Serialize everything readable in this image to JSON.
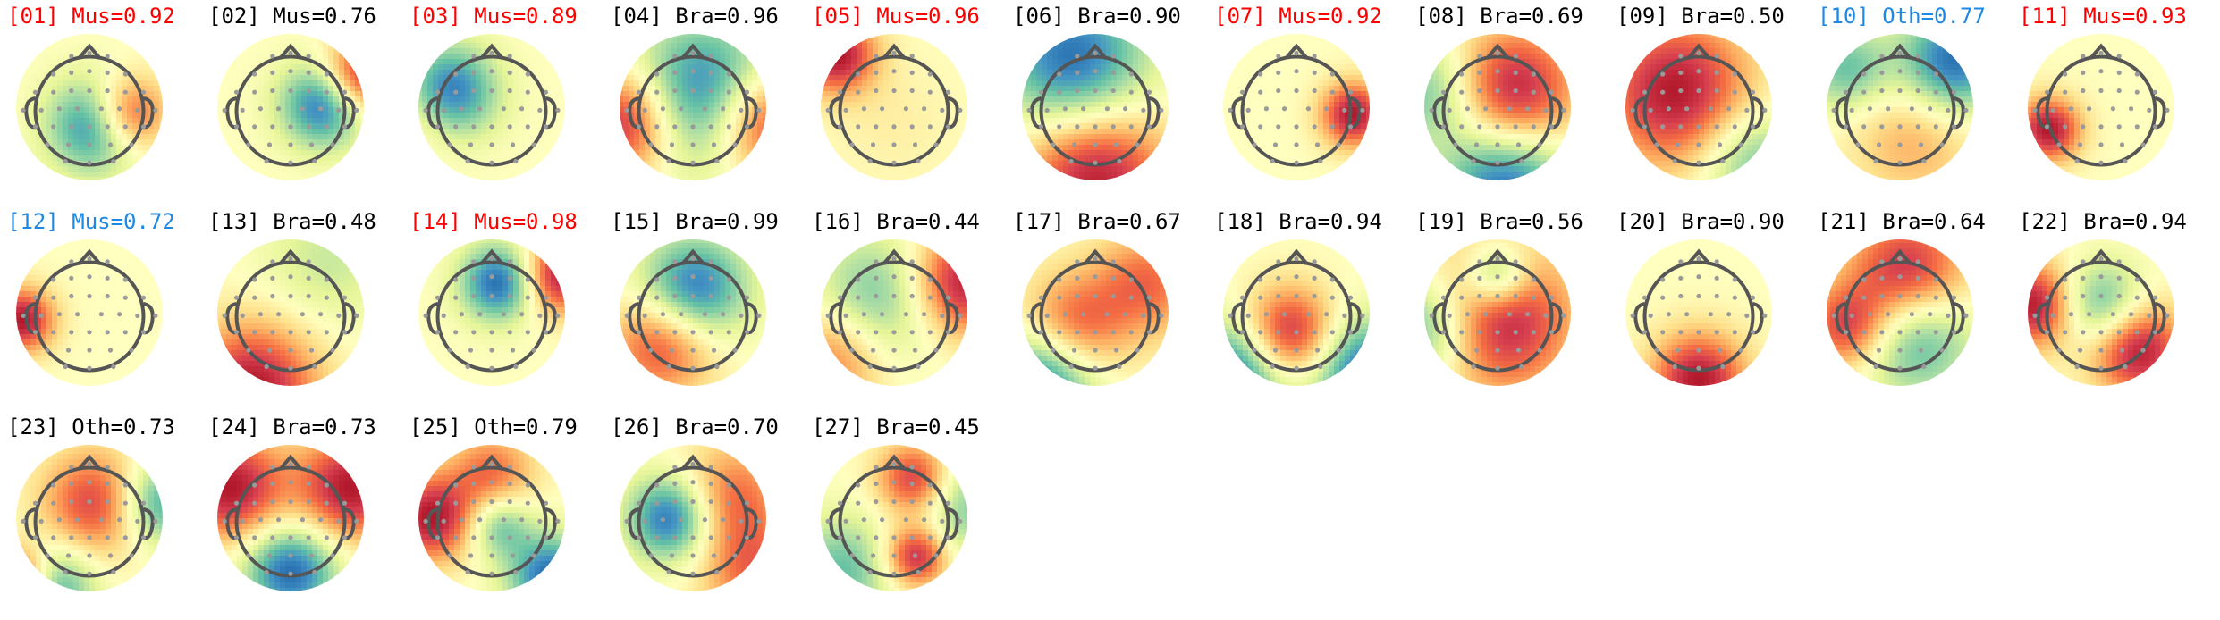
{
  "colors": {
    "muscle_label": "#ff0000",
    "other_label": "#1e88e5",
    "brain_label": "#000000",
    "head_outline": "#555555",
    "electrode": "#9a9a9a",
    "colormap": [
      "#2166ac",
      "#4393c3",
      "#66c2a5",
      "#abdda4",
      "#e6f598",
      "#ffffbf",
      "#fee08b",
      "#fdae61",
      "#f46d43",
      "#d53e4f",
      "#b2182b"
    ]
  },
  "components": [
    {
      "id": "[01]",
      "label": "Mus=0.92",
      "category": "muscle",
      "blobs": [
        [
          0.55,
          0.62,
          -1,
          0.22
        ],
        [
          0.75,
          0.55,
          1,
          0.18
        ]
      ]
    },
    {
      "id": "[02]",
      "label": "Mus=0.76",
      "category": "brain",
      "blobs": [
        [
          0.72,
          0.48,
          -1,
          0.2
        ],
        [
          0.95,
          0.3,
          1,
          0.18
        ]
      ]
    },
    {
      "id": "[03]",
      "label": "Mus=0.89",
      "category": "muscle",
      "blobs": [
        [
          0.22,
          0.4,
          -1,
          0.22
        ],
        [
          0.05,
          0.55,
          0.3,
          0.2
        ]
      ]
    },
    {
      "id": "[04]",
      "label": "Bra=0.96",
      "category": "brain",
      "blobs": [
        [
          0.58,
          0.42,
          -1,
          0.35
        ],
        [
          0.05,
          0.6,
          1,
          0.25
        ],
        [
          0.95,
          0.6,
          1,
          0.25
        ]
      ]
    },
    {
      "id": "[05]",
      "label": "Mus=0.96",
      "category": "muscle",
      "blobs": [
        [
          0.12,
          0.15,
          1,
          0.18
        ],
        [
          0.5,
          0.6,
          0.1,
          0.3
        ]
      ]
    },
    {
      "id": "[06]",
      "label": "Bra=0.90",
      "category": "brain",
      "blobs": [
        [
          0.35,
          0.2,
          -1,
          0.35
        ],
        [
          0.5,
          0.95,
          1,
          0.35
        ]
      ]
    },
    {
      "id": "[07]",
      "label": "Mus=0.92",
      "category": "muscle",
      "blobs": [
        [
          0.88,
          0.55,
          1,
          0.15
        ]
      ]
    },
    {
      "id": "[08]",
      "label": "Bra=0.69",
      "category": "brain",
      "blobs": [
        [
          0.6,
          0.4,
          1,
          0.3
        ],
        [
          0.55,
          1.0,
          -1,
          0.3
        ],
        [
          0.05,
          0.4,
          -0.6,
          0.25
        ]
      ]
    },
    {
      "id": "[09]",
      "label": "Bra=0.50",
      "category": "brain",
      "blobs": [
        [
          0.35,
          0.4,
          1,
          0.35
        ],
        [
          0.85,
          0.85,
          -0.6,
          0.25
        ]
      ]
    },
    {
      "id": "[10]",
      "label": "Oth=0.77",
      "category": "other",
      "blobs": [
        [
          0.85,
          0.2,
          -1,
          0.25
        ],
        [
          0.15,
          0.25,
          -0.6,
          0.2
        ],
        [
          0.6,
          0.7,
          0.4,
          0.3
        ]
      ]
    },
    {
      "id": "[11]",
      "label": "Mus=0.93",
      "category": "muscle",
      "blobs": [
        [
          0.15,
          0.65,
          1,
          0.15
        ]
      ]
    },
    {
      "id": "[12]",
      "label": "Mus=0.72",
      "category": "other",
      "blobs": [
        [
          0.05,
          0.55,
          1,
          0.15
        ]
      ]
    },
    {
      "id": "[13]",
      "label": "Bra=0.48",
      "category": "brain",
      "blobs": [
        [
          0.25,
          1.0,
          1,
          0.3
        ],
        [
          0.75,
          0.15,
          -0.3,
          0.3
        ]
      ]
    },
    {
      "id": "[14]",
      "label": "Mus=0.98",
      "category": "muscle",
      "blobs": [
        [
          0.55,
          0.3,
          -1,
          0.18
        ],
        [
          0.95,
          0.25,
          1,
          0.18
        ]
      ]
    },
    {
      "id": "[15]",
      "label": "Bra=0.99",
      "category": "brain",
      "blobs": [
        [
          0.5,
          0.35,
          -1,
          0.25
        ],
        [
          0.3,
          0.7,
          0.8,
          0.25
        ]
      ]
    },
    {
      "id": "[16]",
      "label": "Bra=0.44",
      "category": "brain",
      "blobs": [
        [
          0.4,
          0.4,
          -0.6,
          0.3
        ],
        [
          0.95,
          0.3,
          1,
          0.25
        ],
        [
          0.1,
          0.8,
          0.6,
          0.25
        ]
      ]
    },
    {
      "id": "[17]",
      "label": "Bra=0.67",
      "category": "brain",
      "blobs": [
        [
          0.35,
          0.6,
          0.7,
          0.25
        ],
        [
          0.15,
          0.95,
          -1,
          0.25
        ],
        [
          0.85,
          0.3,
          0.6,
          0.25
        ]
      ]
    },
    {
      "id": "[18]",
      "label": "Bra=0.94",
      "category": "brain",
      "blobs": [
        [
          0.45,
          0.65,
          1,
          0.22
        ],
        [
          0.1,
          0.9,
          -1,
          0.25
        ],
        [
          0.95,
          0.9,
          -1,
          0.25
        ]
      ]
    },
    {
      "id": "[19]",
      "label": "Bra=0.56",
      "category": "brain",
      "blobs": [
        [
          0.5,
          0.55,
          1,
          0.35
        ],
        [
          0.5,
          0.25,
          -0.8,
          0.15
        ],
        [
          0.05,
          0.6,
          -0.8,
          0.25
        ]
      ]
    },
    {
      "id": "[20]",
      "label": "Bra=0.90",
      "category": "brain",
      "blobs": [
        [
          0.5,
          0.95,
          1,
          0.22
        ],
        [
          0.5,
          0.4,
          0,
          0.3
        ]
      ]
    },
    {
      "id": "[21]",
      "label": "Bra=0.64",
      "category": "brain",
      "blobs": [
        [
          0.55,
          0.25,
          1,
          0.28
        ],
        [
          0.6,
          0.65,
          -0.8,
          0.28
        ],
        [
          0.15,
          0.6,
          0.8,
          0.2
        ]
      ]
    },
    {
      "id": "[22]",
      "label": "Bra=0.94",
      "category": "brain",
      "blobs": [
        [
          0.75,
          0.75,
          1,
          0.22
        ],
        [
          0.05,
          0.45,
          1,
          0.2
        ],
        [
          0.5,
          0.45,
          -0.7,
          0.2
        ]
      ]
    },
    {
      "id": "[23]",
      "label": "Oth=0.73",
      "category": "brain",
      "blobs": [
        [
          0.55,
          0.4,
          0.8,
          0.25
        ],
        [
          0.25,
          0.95,
          -0.8,
          0.2
        ],
        [
          0.95,
          0.4,
          -0.8,
          0.2
        ],
        [
          0.05,
          0.9,
          1,
          0.15
        ]
      ]
    },
    {
      "id": "[24]",
      "label": "Bra=0.73",
      "category": "brain",
      "blobs": [
        [
          0.5,
          0.85,
          -1,
          0.22
        ],
        [
          0.1,
          0.3,
          1,
          0.25
        ],
        [
          0.9,
          0.3,
          1,
          0.25
        ]
      ]
    },
    {
      "id": "[25]",
      "label": "Oth=0.79",
      "category": "brain",
      "blobs": [
        [
          0.1,
          0.5,
          1,
          0.2
        ],
        [
          0.9,
          0.9,
          -1,
          0.2
        ],
        [
          0.55,
          0.55,
          -0.6,
          0.15
        ],
        [
          0.5,
          0.2,
          0.6,
          0.2
        ]
      ]
    },
    {
      "id": "[26]",
      "label": "Bra=0.70",
      "category": "brain",
      "blobs": [
        [
          0.35,
          0.5,
          -1,
          0.2
        ],
        [
          0.75,
          0.35,
          0.6,
          0.25
        ],
        [
          0.9,
          0.85,
          0.6,
          0.25
        ]
      ]
    },
    {
      "id": "[27]",
      "label": "Bra=0.45",
      "category": "brain",
      "blobs": [
        [
          0.65,
          0.25,
          1,
          0.18
        ],
        [
          0.65,
          0.75,
          1,
          0.15
        ],
        [
          0.15,
          0.85,
          -0.6,
          0.25
        ],
        [
          0.9,
          0.4,
          -0.6,
          0.25
        ]
      ]
    }
  ]
}
